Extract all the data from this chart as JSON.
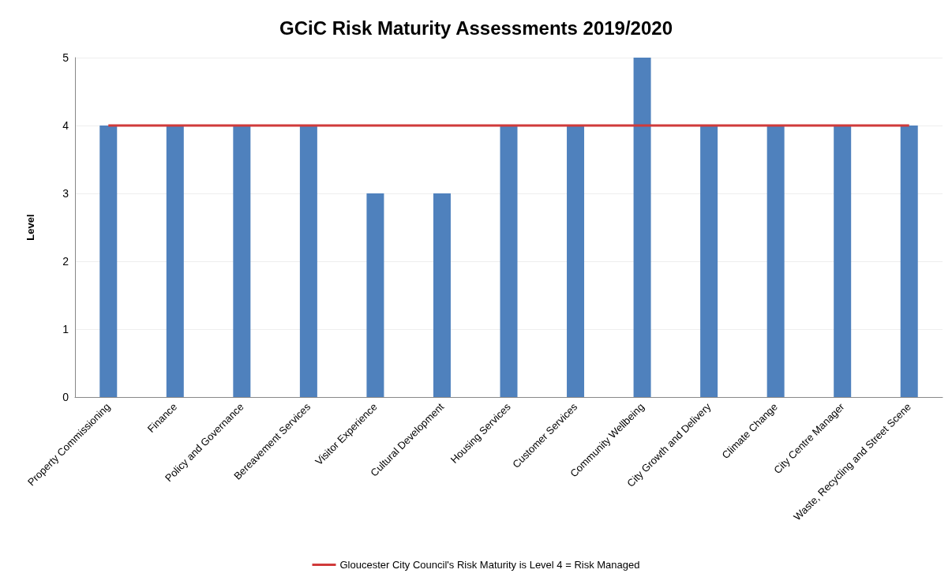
{
  "chart_data": {
    "type": "bar",
    "title": "GCiC Risk Maturity Assessments 2019/2020",
    "ylabel": "Level",
    "categories": [
      "Property Commissioning",
      "Finance",
      "Policy and Governance",
      "Bereavement Services",
      "Visitor Experience",
      "Cultural Development",
      "Housing Services",
      "Customer Services",
      "Community Wellbeing",
      "City Growth and Delivery",
      "Climate Change",
      "City Centre Manager",
      "Waste, Recycling and Street Scene"
    ],
    "series": [
      {
        "color": "#4f81bd",
        "values": [
          4,
          4,
          4,
          4,
          3,
          3,
          4,
          4,
          5,
          4,
          4,
          4,
          4
        ]
      },
      {
        "type": "line",
        "name": "Gloucester City Council's Risk Maturity is Level 4 = Risk Managed",
        "color": "#d03a3a",
        "values": [
          4,
          4,
          4,
          4,
          4,
          4,
          4,
          4,
          4,
          4,
          4,
          4,
          4
        ]
      }
    ],
    "ylim": [
      0,
      5
    ],
    "yticks": [
      0,
      1,
      2,
      3,
      4,
      5
    ],
    "grid": "y",
    "legend": "bottom",
    "marker": "none"
  }
}
